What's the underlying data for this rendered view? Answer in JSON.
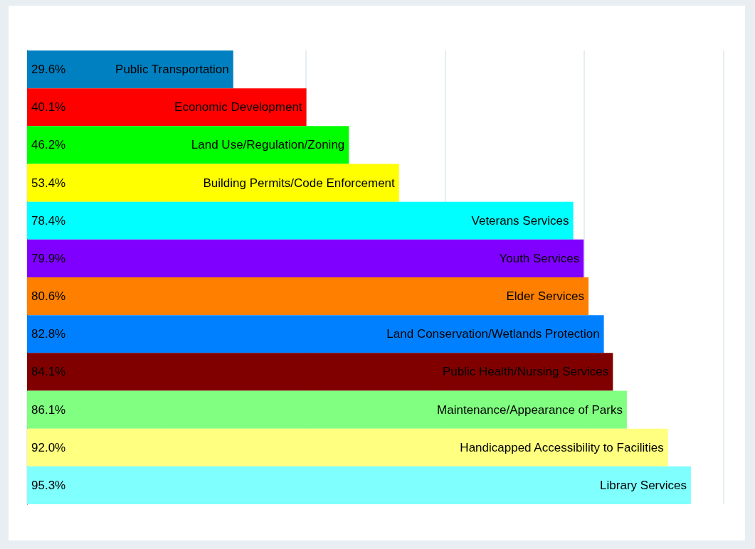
{
  "chart_data": {
    "type": "bar",
    "orientation": "horizontal",
    "categories": [
      "Public Transportation",
      "Economic Development",
      "Land Use/Regulation/Zoning",
      "Building Permits/Code Enforcement",
      "Veterans Services",
      "Youth Services",
      "Elder Services",
      "Land Conservation/Wetlands Protection",
      "Public Health/Nursing Services",
      "Maintenance/Appearance of Parks",
      "Handicapped Accessibility to Facilities",
      "Library Services"
    ],
    "values": [
      29.6,
      40.1,
      46.2,
      53.4,
      78.4,
      79.9,
      80.6,
      82.8,
      84.1,
      86.1,
      92.0,
      95.3
    ],
    "value_labels": [
      "29.6%",
      "40.1%",
      "46.2%",
      "53.4%",
      "78.4%",
      "79.9%",
      "80.6%",
      "82.8%",
      "84.1%",
      "86.1%",
      "92.0%",
      "95.3%"
    ],
    "colors": [
      "#0080c0",
      "#ff0000",
      "#00ff00",
      "#ffff00",
      "#00ffff",
      "#8000ff",
      "#ff8000",
      "#0080ff",
      "#800000",
      "#80ff80",
      "#ffff80",
      "#80ffff"
    ],
    "xlim": [
      0,
      100
    ],
    "xticks": [
      {
        "value": 0,
        "label": null
      },
      {
        "value": 20,
        "label": null
      },
      {
        "value": 40,
        "label": null
      },
      {
        "value": 60,
        "label": null
      },
      {
        "value": 80,
        "label": null
      },
      {
        "value": 100,
        "label": null
      }
    ],
    "grid": "x"
  }
}
